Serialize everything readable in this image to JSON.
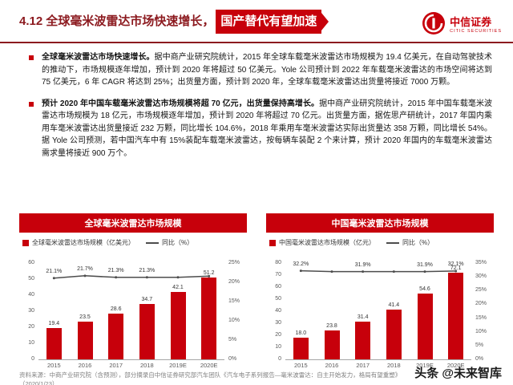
{
  "theme": {
    "accent_red": "#c7000b",
    "dark_red": "#8c1a1f",
    "line_gray": "#4d4d4d",
    "axis_gray": "#a6a6a6",
    "tick_text": "#595959"
  },
  "header": {
    "title_plain": "4.12 全球毫米波雷达市场快速增长，",
    "title_highlight": "国产替代有望加速",
    "logo_cn": "中信证券",
    "logo_en": "CITIC SECURITIES"
  },
  "bullets": [
    {
      "lead": "全球毫米波雷达市场快速增长。",
      "text": "据中商产业研究院统计，2015 年全球车载毫米波雷达市场规模为 19.4 亿美元，在自动驾驶技术的推动下，市场规模逐年增加，预计到 2020 年将超过 50 亿美元。Yole 公司预计到 2022 年车载毫米波雷达的市场空间将达到 75 亿美元，6 年 CAGR 将达到 25%；出货量方面，预计到 2020 年，全球车载毫米波雷达出货量将接近 7000 万颗。"
    },
    {
      "lead": "预计 2020 年中国车载毫米波雷达市场规模将超 70 亿元，出货量保持高增长。",
      "text": "据中商产业研究院统计，2015 年中国车载毫米波雷达市场规模为 18 亿元，市场规模逐年增加，预计到 2020 年将超过 70 亿元。出货量方面，据佐思产研统计，2017 年国内乘用车毫米波雷达出货量接近 232 万颗，同比增长 104.6%，2018 年乘用车毫米波雷达实际出货量达 358 万颗，同比增长 54%。据 Yole 公司预测，若中国汽车中有 15%装配车载毫米波雷达，按每辆车装配 2 个来计算，预计 2020 年国内的车载毫米波雷达需求量将接近 900 万个。"
    }
  ],
  "chart_data": [
    {
      "type": "bar",
      "title": "全球毫米波雷达市场规模",
      "categories": [
        "2015",
        "2016",
        "2017",
        "2018",
        "2019E",
        "2020E"
      ],
      "series": [
        {
          "name": "全球毫米波雷达市场规模（亿美元）",
          "kind": "bar",
          "axis": "left",
          "values": [
            19.4,
            23.5,
            28.6,
            34.7,
            42.1,
            51.2
          ]
        },
        {
          "name": "同比（%）",
          "kind": "line",
          "axis": "right",
          "values": [
            21.1,
            21.7,
            21.3,
            21.3,
            21.3,
            21.6
          ],
          "labels": [
            "21.1%",
            "21.7%",
            "21.3%",
            "21.3%",
            null,
            null
          ]
        }
      ],
      "left_axis": {
        "min": 0,
        "max": 60,
        "step": 10
      },
      "right_axis": {
        "min": 0,
        "max": 25,
        "step": 5,
        "suffix": "%"
      },
      "legend_position": "top",
      "grid": false
    },
    {
      "type": "bar",
      "title": "中国毫米波雷达市场规模",
      "categories": [
        "2015",
        "2016",
        "2017",
        "2018",
        "2019E",
        "2020E"
      ],
      "series": [
        {
          "name": "中国毫米波雷达市场规模（亿元）",
          "kind": "bar",
          "axis": "left",
          "values": [
            18.0,
            23.8,
            31.4,
            41.4,
            54.6,
            72.1
          ]
        },
        {
          "name": "同比（%）",
          "kind": "line",
          "axis": "right",
          "values": [
            32.2,
            31.9,
            31.9,
            31.9,
            31.9,
            32.1
          ],
          "labels": [
            "32.2%",
            null,
            "31.9%",
            null,
            "31.9%",
            "32.1%"
          ]
        }
      ],
      "left_axis": {
        "min": 0,
        "max": 80,
        "step": 10
      },
      "right_axis": {
        "min": 0,
        "max": 35,
        "step": 5,
        "suffix": "%"
      },
      "legend_position": "top",
      "grid": false
    }
  ],
  "footer": {
    "source": "资料来源：中商产业研究院（含预测），部分摘录自中信证券研究部汽车团队《汽车电子系列报告—毫米波雷达：自主开始发力，格局有望重塑》（2020/1/23）",
    "watermark": "头条 @未来智库"
  }
}
